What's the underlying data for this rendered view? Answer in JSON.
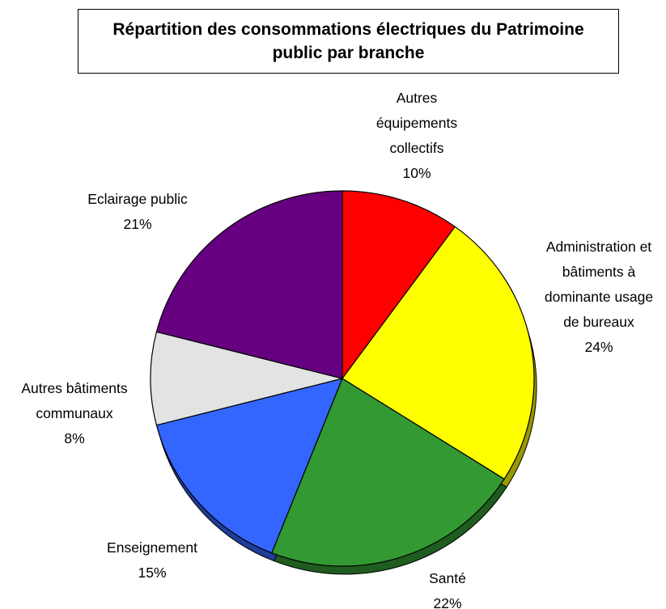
{
  "chart_data": {
    "type": "pie",
    "title": "Répartition des consommations électriques du Patrimoine public par branche",
    "slices": [
      {
        "name": "Autres équipements collectifs",
        "value": 10,
        "label_lines": [
          "Autres",
          "équipements",
          "collectifs"
        ],
        "value_text": "10%",
        "color": "#FF0000"
      },
      {
        "name": "Administration et bâtiments à dominante usage de bureaux",
        "value": 24,
        "label_lines": [
          "Administration et",
          "bâtiments à",
          "dominante usage",
          "de bureaux"
        ],
        "value_text": "24%",
        "color": "#FFFF00"
      },
      {
        "name": "Santé",
        "value": 22,
        "label_lines": [
          "Santé"
        ],
        "value_text": "22%",
        "color": "#339933"
      },
      {
        "name": "Enseignement",
        "value": 15,
        "label_lines": [
          "Enseignement"
        ],
        "value_text": "15%",
        "color": "#3366FF"
      },
      {
        "name": "Autres bâtiments communaux",
        "value": 8,
        "label_lines": [
          "Autres bâtiments",
          "communaux"
        ],
        "value_text": "8%",
        "color": "#E3E3E3"
      },
      {
        "name": "Eclairage public",
        "value": 21,
        "label_lines": [
          "Eclairage public"
        ],
        "value_text": "21%",
        "color": "#660080"
      }
    ],
    "start_angle": "12 o'clock",
    "direction": "clockwise",
    "style": "3D-tilted pie with shadow",
    "legend": "none (labels beside slices)"
  }
}
